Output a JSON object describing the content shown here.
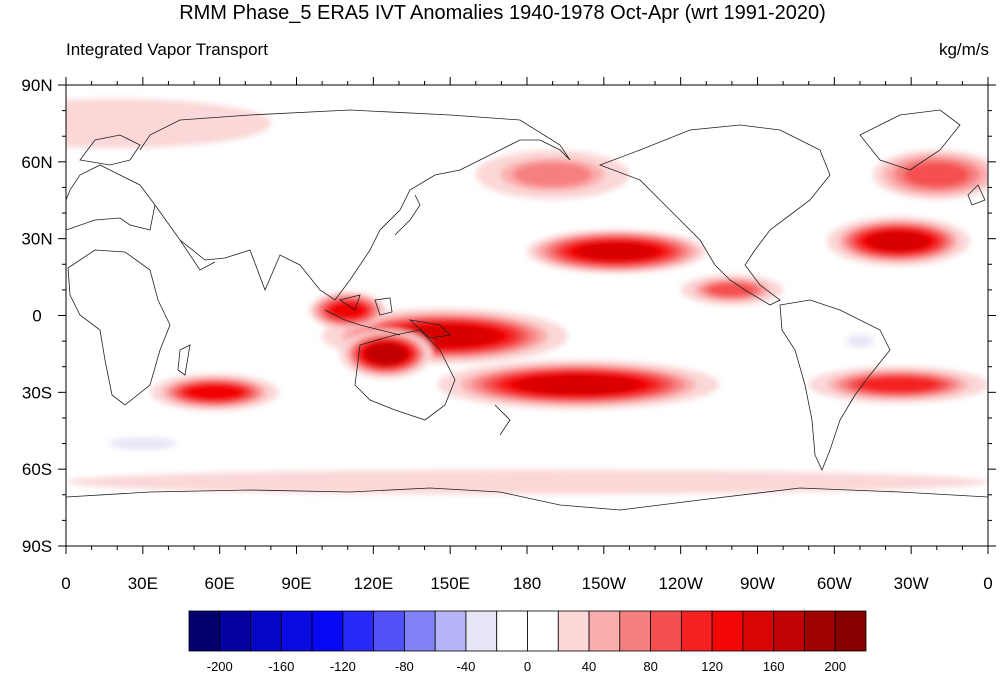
{
  "title": "RMM Phase_5 ERA5 IVT Anomalies 1940-1978 Oct-Apr (wrt 1991-2020)",
  "left_label": "Integrated Vapor Transport",
  "right_label": "kg/m/s",
  "lat_labels": [
    "90N",
    "60N",
    "30N",
    "0",
    "30S",
    "60S",
    "90S"
  ],
  "lon_labels": [
    "0",
    "30E",
    "60E",
    "90E",
    "120E",
    "150E",
    "180",
    "150W",
    "120W",
    "90W",
    "60W",
    "30W",
    "0"
  ],
  "colorbar": {
    "colors": [
      "#03006e",
      "#0302a0",
      "#0506c8",
      "#0a0ae2",
      "#0808f8",
      "#2828f7",
      "#5252f7",
      "#8282f7",
      "#b4b4f7",
      "#e6e6f7",
      "#ffffff",
      "#ffffff",
      "#fbd7d7",
      "#fbadad",
      "#f68080",
      "#f54f4f",
      "#f52020",
      "#f20606",
      "#d90505",
      "#c00303",
      "#a00202",
      "#870000"
    ],
    "labels": [
      "-200",
      "-160",
      "-120",
      "-80",
      "-40",
      "0",
      "40",
      "80",
      "120",
      "160",
      "200"
    ]
  },
  "chart_data": {
    "type": "heatmap",
    "title": "RMM Phase_5 ERA5 IVT Anomalies 1940-1978 Oct-Apr (wrt 1991-2020)",
    "variable": "Integrated Vapor Transport",
    "units": "kg/m/s",
    "x_range": [
      0,
      360
    ],
    "y_range": [
      -90,
      90
    ],
    "color_levels": [
      -200,
      -180,
      -160,
      -140,
      -120,
      -100,
      -80,
      -60,
      -40,
      -20,
      0,
      20,
      40,
      60,
      80,
      100,
      120,
      140,
      160,
      180,
      200
    ],
    "regions": [
      {
        "lon": 148,
        "lat": -8,
        "rx": 48,
        "ry": 9,
        "value": 150
      },
      {
        "lon": 125,
        "lat": -15,
        "rx": 18,
        "ry": 8,
        "value": 170
      },
      {
        "lon": 200,
        "lat": -27,
        "rx": 55,
        "ry": 8,
        "value": 150
      },
      {
        "lon": 215,
        "lat": 25,
        "rx": 35,
        "ry": 7,
        "value": 140
      },
      {
        "lon": 325,
        "lat": 29,
        "rx": 28,
        "ry": 8,
        "value": 150
      },
      {
        "lon": 58,
        "lat": -30,
        "rx": 25,
        "ry": 6,
        "value": 130
      },
      {
        "lon": 110,
        "lat": 2,
        "rx": 15,
        "ry": 6,
        "value": 120
      },
      {
        "lon": 325,
        "lat": -27,
        "rx": 35,
        "ry": 6,
        "value": 110
      },
      {
        "lon": 260,
        "lat": 10,
        "rx": 20,
        "ry": 5,
        "value": 90
      },
      {
        "lon": 190,
        "lat": 55,
        "rx": 30,
        "ry": 8,
        "value": 70
      },
      {
        "lon": 340,
        "lat": 55,
        "rx": 25,
        "ry": 8,
        "value": 80
      },
      {
        "lon": 180,
        "lat": -65,
        "rx": 180,
        "ry": 4,
        "value": 30
      },
      {
        "lon": 20,
        "lat": 75,
        "rx": 60,
        "ry": 8,
        "value": 30
      },
      {
        "lon": 30,
        "lat": -50,
        "rx": 20,
        "ry": 3,
        "value": -30
      },
      {
        "lon": 310,
        "lat": -10,
        "rx": 8,
        "ry": 3,
        "value": -25
      }
    ]
  }
}
